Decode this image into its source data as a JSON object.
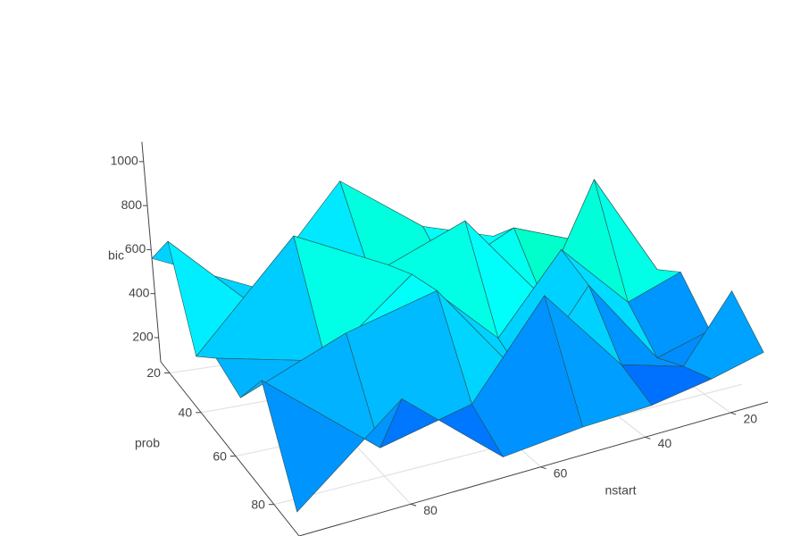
{
  "chart_data": {
    "type": "surface",
    "xlabel": "nstart",
    "ylabel": "prob",
    "zlabel": "bic",
    "x": [
      10,
      24,
      38,
      52,
      66,
      80,
      94
    ],
    "y": [
      14,
      27,
      40,
      53,
      66,
      79,
      92
    ],
    "z": [
      [
        420,
        520,
        560,
        640,
        900,
        380,
        560
      ],
      [
        350,
        600,
        700,
        480,
        560,
        300,
        730
      ],
      [
        480,
        1060,
        400,
        850,
        650,
        820,
        330
      ],
      [
        560,
        420,
        760,
        330,
        700,
        350,
        430
      ],
      [
        300,
        200,
        660,
        220,
        720,
        580,
        380
      ],
      [
        640,
        260,
        340,
        750,
        300,
        200,
        560
      ],
      [
        380,
        300,
        240,
        220,
        180,
        520,
        180
      ]
    ],
    "xlim": [
      10,
      94
    ],
    "ylim": [
      14,
      92
    ],
    "zlim": [
      90,
      1090
    ],
    "xticks": [
      20,
      40,
      60,
      80
    ],
    "yticks": [
      20,
      40,
      60,
      80
    ],
    "zticks": [
      200,
      400,
      600,
      800,
      1000
    ],
    "colorscale": [
      [
        0,
        "#0040ff"
      ],
      [
        0.3,
        "#00b8ff"
      ],
      [
        0.45,
        "#00ffff"
      ],
      [
        0.7,
        "#00ff9a"
      ],
      [
        1,
        "#10ff00"
      ]
    ],
    "grid": true
  }
}
